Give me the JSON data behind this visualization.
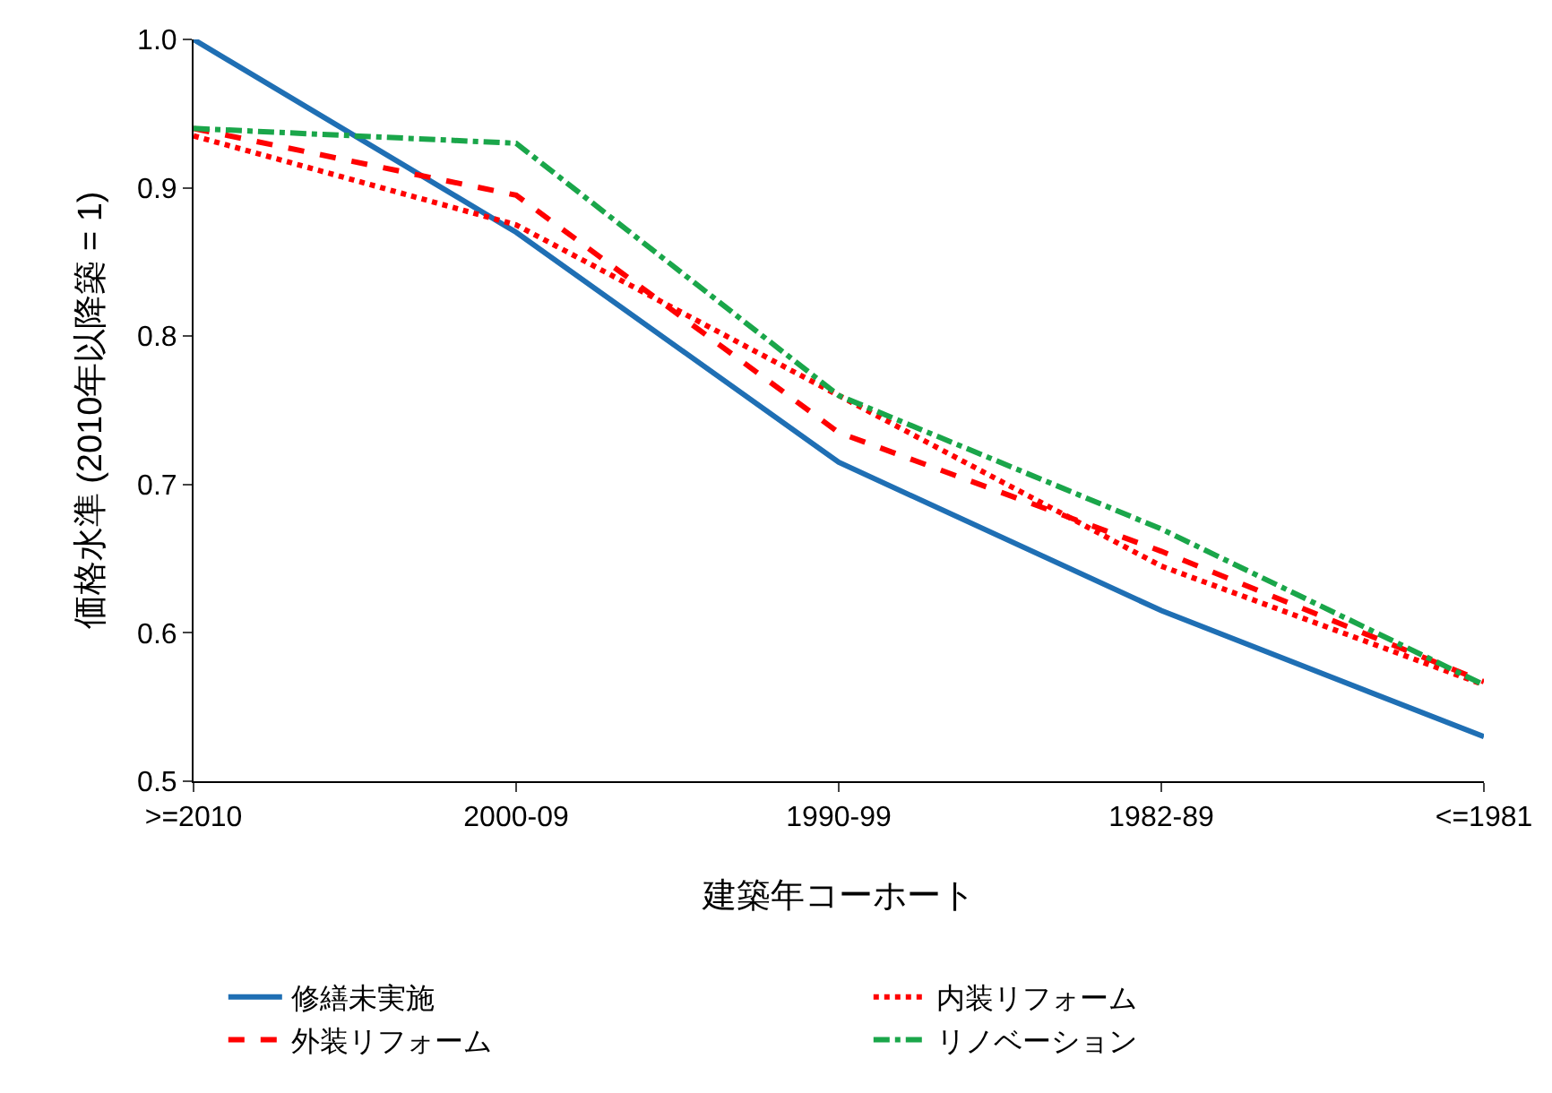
{
  "chart_data": {
    "type": "line",
    "xlabel": "建築年コーホート",
    "ylabel": "価格水準 (2010年以降築 = 1)",
    "categories": [
      ">=2010",
      "2000-09",
      "1990-99",
      "1982-89",
      "<=1981"
    ],
    "ylim": [
      0.5,
      1.0
    ],
    "yticks": [
      {
        "value": 0.5,
        "label": "0.5"
      },
      {
        "value": 0.6,
        "label": "0.6"
      },
      {
        "value": 0.7,
        "label": "0.7"
      },
      {
        "value": 0.8,
        "label": "0.8"
      },
      {
        "value": 0.9,
        "label": "0.9"
      },
      {
        "value": 1.0,
        "label": "1.0"
      }
    ],
    "grid": false,
    "legend": "bottom",
    "marker": "none",
    "series": [
      {
        "name": "修繕未実施",
        "color": "#1f6fb4",
        "line_style": "solid",
        "values": [
          1.0,
          0.87,
          0.715,
          0.615,
          0.53
        ]
      },
      {
        "name": "内装リフォーム",
        "color": "#ff0000",
        "line_style": "dotted",
        "values": [
          0.935,
          0.875,
          0.76,
          0.645,
          0.565
        ]
      },
      {
        "name": "外装リフォーム",
        "color": "#ff0000",
        "line_style": "dashed",
        "values": [
          0.94,
          0.895,
          0.735,
          0.655,
          0.567
        ]
      },
      {
        "name": "リノベーション",
        "color": "#1aa64a",
        "line_style": "dashdot",
        "values": [
          0.94,
          0.93,
          0.76,
          0.67,
          0.565
        ]
      }
    ]
  }
}
